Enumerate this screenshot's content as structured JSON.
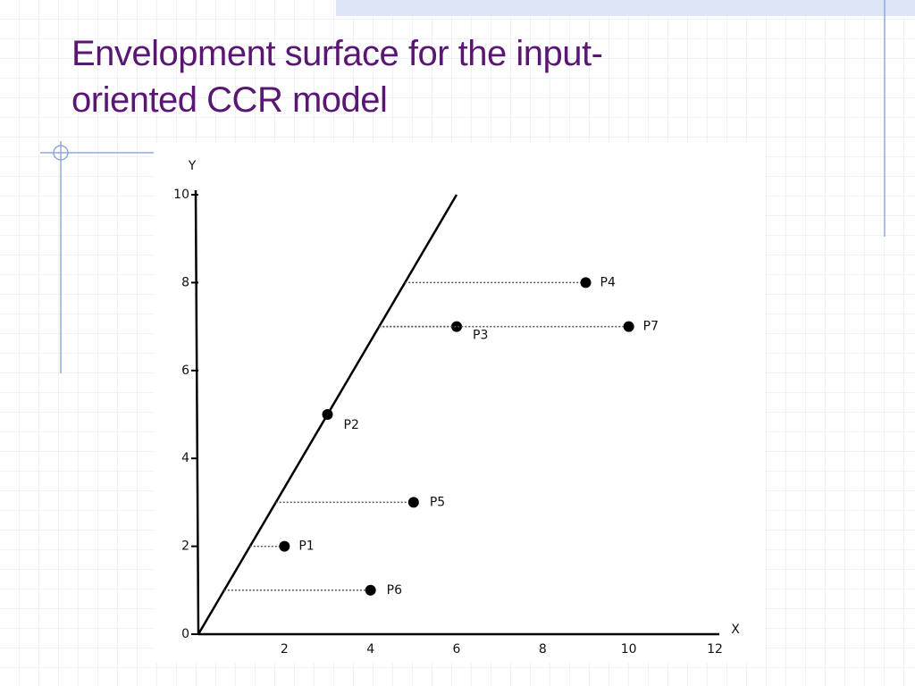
{
  "chart_data": {
    "type": "scatter",
    "title": "Envelopment surface for the input-oriented CCR model",
    "x_label": "X",
    "y_label": "Y",
    "labels": [
      "P1",
      "P2",
      "P3",
      "P4",
      "P5",
      "P6",
      "P7"
    ],
    "x": [
      2,
      3,
      6,
      9,
      5,
      4,
      10
    ],
    "values": [
      2,
      5,
      7,
      8,
      3,
      1,
      7
    ],
    "color": "#000000",
    "xlim": [
      0,
      12
    ],
    "ylim": [
      0,
      10
    ],
    "xticks": [
      2,
      4,
      6,
      8,
      10,
      12
    ],
    "yticks": [
      0,
      2,
      4,
      6,
      8,
      10
    ]
  }
}
